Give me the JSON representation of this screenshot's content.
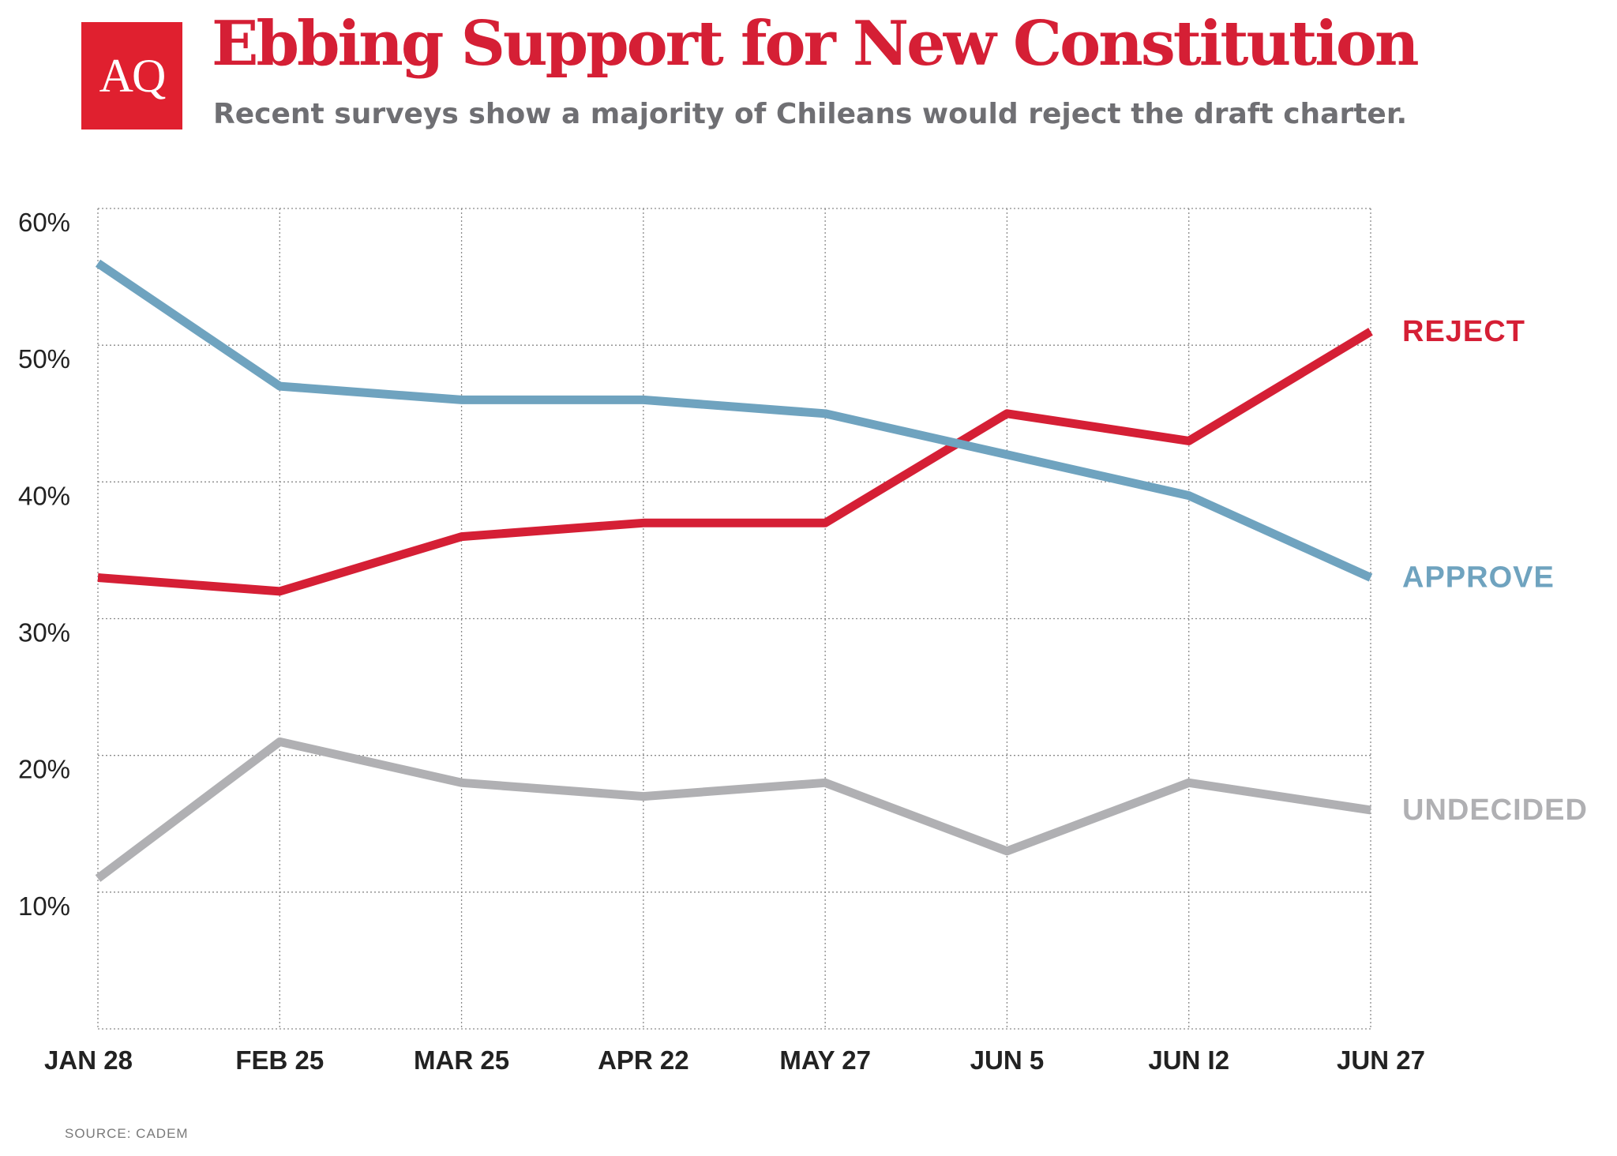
{
  "header": {
    "logo_text": "AQ",
    "title": "Ebbing Support for New Constitution",
    "subtitle": "Recent surveys show a majority of Chileans would reject the draft charter."
  },
  "footer": {
    "source": "SOURCE: CADEM"
  },
  "chart_data": {
    "type": "line",
    "categories": [
      "JAN 28",
      "FEB 25",
      "MAR 25",
      "APR 22",
      "MAY 27",
      "JUN 5",
      "JUN I2",
      "JUN 27"
    ],
    "y_ticks": [
      10,
      20,
      30,
      40,
      50,
      60
    ],
    "y_tick_labels": [
      "10%",
      "20%",
      "30%",
      "40%",
      "50%",
      "60%"
    ],
    "ylim": [
      0,
      60
    ],
    "grid": true,
    "grid_style": "dotted",
    "series": [
      {
        "name": "REJECT",
        "color": "#d51f35",
        "values": [
          33,
          32,
          36,
          37,
          37,
          45,
          43,
          51
        ]
      },
      {
        "name": "APPROVE",
        "color": "#6fa3bf",
        "values": [
          56,
          47,
          46,
          46,
          45,
          42,
          39,
          33
        ]
      },
      {
        "name": "UNDECIDED",
        "color": "#b0b0b3",
        "values": [
          11,
          21,
          18,
          17,
          18,
          13,
          18,
          16
        ]
      }
    ]
  }
}
